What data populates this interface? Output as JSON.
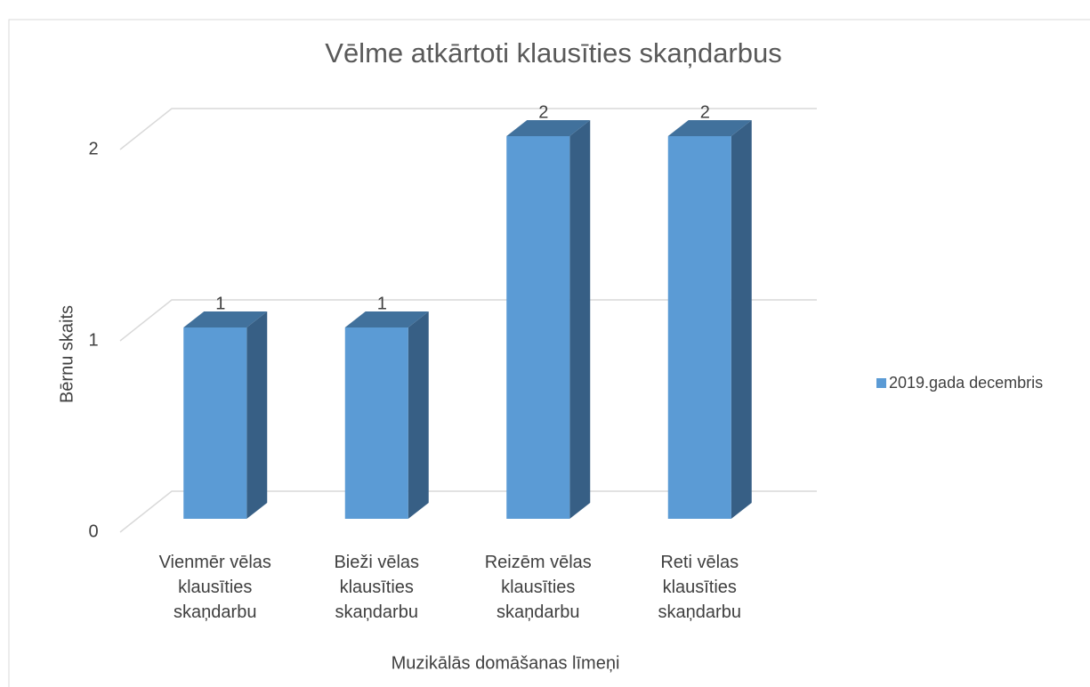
{
  "chart_data": {
    "type": "bar3d",
    "title": "Vēlme atkārtoti klausīties skaņdarbus",
    "categories": [
      "Vienmēr vēlas klausīties skaņdarbu",
      "Bieži vēlas klausīties skaņdarbu",
      "Reizēm vēlas klausīties skaņdarbu",
      "Reti vēlas klausīties skaņdarbu"
    ],
    "series": [
      {
        "name": "2019.gada decembris",
        "color": "#5b9bd5",
        "values": [
          1,
          1,
          2,
          2
        ]
      }
    ],
    "ylim": [
      0,
      2
    ],
    "yticks": [
      0,
      1,
      2
    ],
    "grid": true,
    "legend": "right",
    "xlabel": "Muzikālās domāšanas līmeņi",
    "ylabel": "Bērnu skaits"
  }
}
